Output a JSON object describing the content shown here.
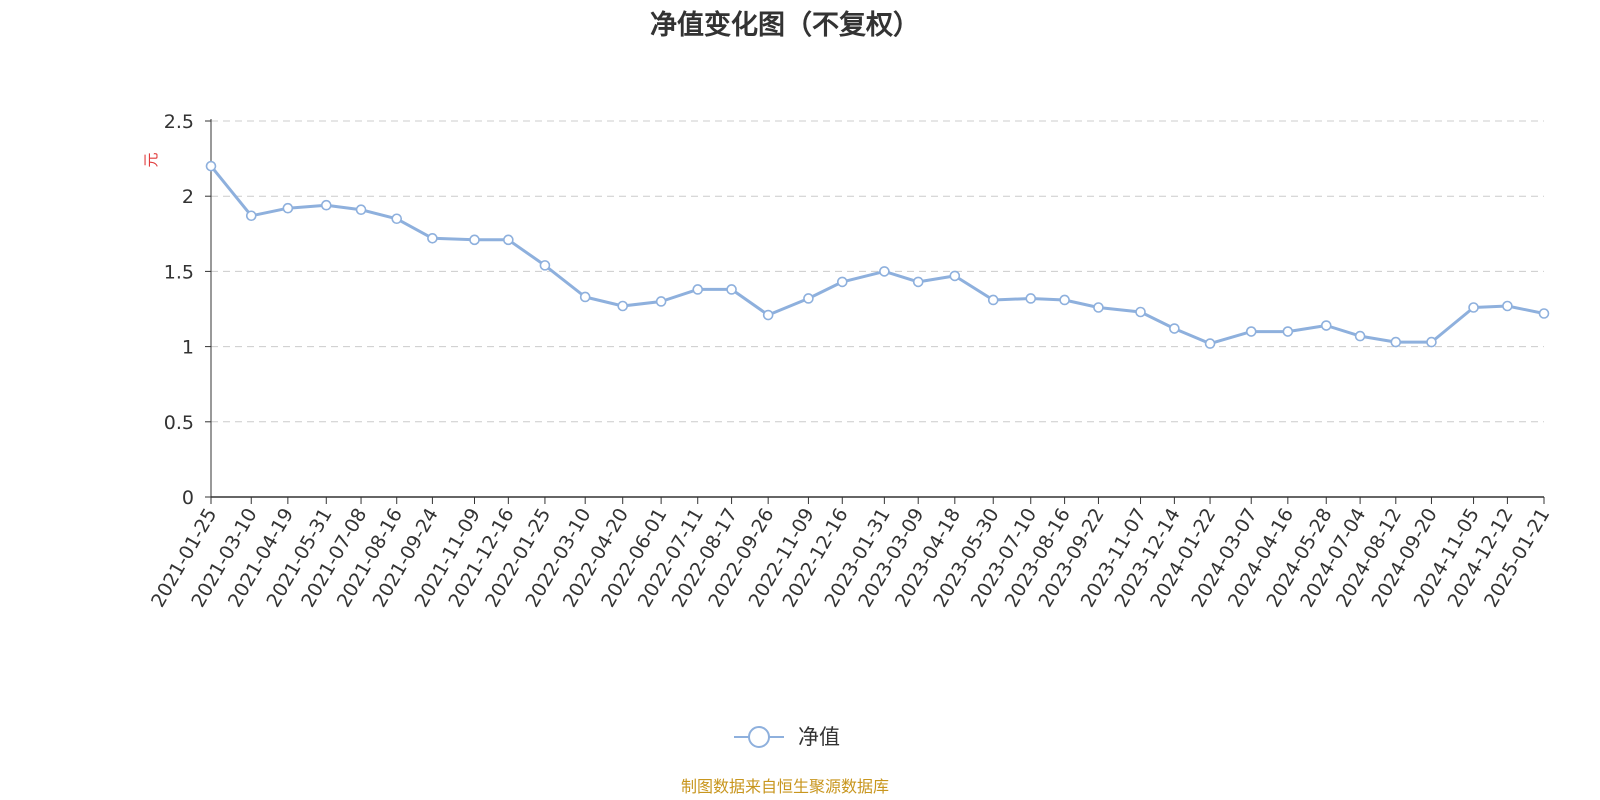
{
  "colors": {
    "line": "#8eb0dd",
    "title": "#333333",
    "ylabel": "#e03a3a",
    "source": "#c8961e",
    "grid": "#cccccc",
    "axis": "#333333"
  },
  "footer": {
    "source": "制图数据来自恒生聚源数据库"
  },
  "chart_data": {
    "type": "line",
    "title": "净值变化图（不复权）",
    "ylabel": "元",
    "xlabel": "",
    "ylim": [
      0,
      2.5
    ],
    "yticks": [
      "0",
      "0.5",
      "1",
      "1.5",
      "2",
      "2.5"
    ],
    "grid": true,
    "legend_position": "bottom-center",
    "x_tick_labels": [
      "2021-01-25",
      "2021-03-10",
      "2021-04-19",
      "2021-05-31",
      "2021-07-08",
      "2021-08-16",
      "2021-09-24",
      "2021-11-09",
      "2021-12-16",
      "2022-01-25",
      "2022-03-10",
      "2022-04-20",
      "2022-06-01",
      "2022-07-11",
      "2022-08-17",
      "2022-09-26",
      "2022-11-09",
      "2022-12-16",
      "2023-01-31",
      "2023-03-09",
      "2023-04-18",
      "2023-05-30",
      "2023-07-10",
      "2023-08-16",
      "2023-09-22",
      "2023-11-07",
      "2023-12-14",
      "2024-01-22",
      "2024-03-07",
      "2024-04-16",
      "2024-05-28",
      "2024-07-04",
      "2024-08-12",
      "2024-09-20",
      "2024-11-05",
      "2024-12-12",
      "2025-01-21"
    ],
    "series": [
      {
        "name": "净值",
        "x": [
          "2021-01-25",
          "2021-03-10",
          "2021-04-19",
          "2021-05-31",
          "2021-07-08",
          "2021-08-16",
          "2021-09-24",
          "2021-11-09",
          "2021-12-16",
          "2022-01-25",
          "2022-03-10",
          "2022-04-20",
          "2022-06-01",
          "2022-07-11",
          "2022-08-17",
          "2022-09-26",
          "2022-11-09",
          "2022-12-16",
          "2023-01-31",
          "2023-03-09",
          "2023-04-18",
          "2023-05-30",
          "2023-07-10",
          "2023-08-16",
          "2023-09-22",
          "2023-11-07",
          "2023-12-14",
          "2024-01-22",
          "2024-03-07",
          "2024-04-16",
          "2024-05-28",
          "2024-07-04",
          "2024-08-12",
          "2024-09-20",
          "2024-11-05",
          "2024-12-12",
          "2025-01-21"
        ],
        "values": [
          2.2,
          1.87,
          1.92,
          1.94,
          1.91,
          1.85,
          1.72,
          1.71,
          1.71,
          1.54,
          1.33,
          1.27,
          1.3,
          1.38,
          1.38,
          1.21,
          1.32,
          1.43,
          1.5,
          1.43,
          1.47,
          1.31,
          1.32,
          1.31,
          1.26,
          1.23,
          1.12,
          1.02,
          1.1,
          1.1,
          1.14,
          1.07,
          1.03,
          1.03,
          1.26,
          1.27,
          1.22
        ]
      }
    ]
  }
}
